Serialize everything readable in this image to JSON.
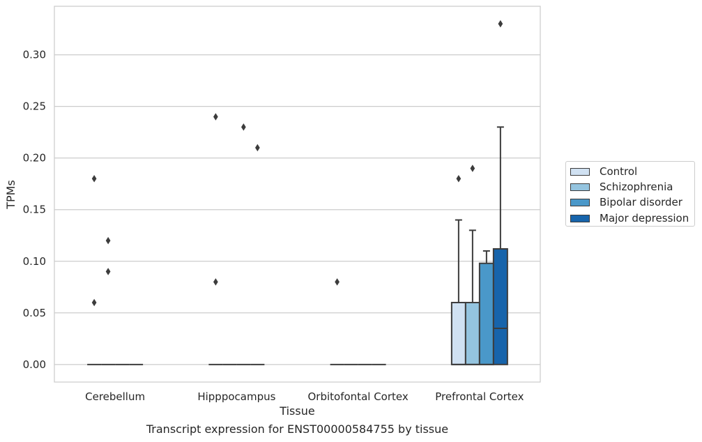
{
  "chart_data": {
    "type": "box",
    "caption": "Transcript expression for ENST00000584755 by tissue",
    "xlabel": "Tissue",
    "ylabel": "TPMs",
    "ylim": [
      -0.017,
      0.347
    ],
    "yticks": [
      0.0,
      0.05,
      0.1,
      0.15,
      0.2,
      0.25,
      0.3
    ],
    "ytick_labels": [
      "0.00",
      "0.05",
      "0.10",
      "0.15",
      "0.20",
      "0.25",
      "0.30"
    ],
    "categories": [
      "Cerebellum",
      "Hipppocampus",
      "Orbitofontal Cortex",
      "Prefrontal Cortex"
    ],
    "grid": "horizontal",
    "legend_position": "right",
    "series": [
      {
        "name": "Control",
        "color": "#d0e1f2",
        "boxes": [
          {
            "q1": 0,
            "median": 0,
            "q3": 0,
            "whisker_low": 0,
            "whisker_high": 0,
            "outliers": [
              0.06,
              0.18
            ]
          },
          {
            "q1": 0,
            "median": 0,
            "q3": 0,
            "whisker_low": 0,
            "whisker_high": 0,
            "outliers": [
              0.08,
              0.24
            ]
          },
          {
            "q1": 0,
            "median": 0,
            "q3": 0,
            "whisker_low": 0,
            "whisker_high": 0,
            "outliers": [
              0.08
            ]
          },
          {
            "q1": 0,
            "median": 0,
            "q3": 0.06,
            "whisker_low": 0,
            "whisker_high": 0.14,
            "outliers": [
              0.18
            ]
          }
        ]
      },
      {
        "name": "Schizophrenia",
        "color": "#94c4df",
        "boxes": [
          {
            "q1": 0,
            "median": 0,
            "q3": 0,
            "whisker_low": 0,
            "whisker_high": 0,
            "outliers": [
              0.09,
              0.12
            ]
          },
          {
            "q1": 0,
            "median": 0,
            "q3": 0,
            "whisker_low": 0,
            "whisker_high": 0,
            "outliers": []
          },
          {
            "q1": 0,
            "median": 0,
            "q3": 0,
            "whisker_low": 0,
            "whisker_high": 0,
            "outliers": []
          },
          {
            "q1": 0,
            "median": 0,
            "q3": 0.06,
            "whisker_low": 0,
            "whisker_high": 0.13,
            "outliers": [
              0.19
            ]
          }
        ]
      },
      {
        "name": "Bipolar disorder",
        "color": "#4a98c9",
        "boxes": [
          {
            "q1": 0,
            "median": 0,
            "q3": 0,
            "whisker_low": 0,
            "whisker_high": 0,
            "outliers": []
          },
          {
            "q1": 0,
            "median": 0,
            "q3": 0,
            "whisker_low": 0,
            "whisker_high": 0,
            "outliers": [
              0.23
            ]
          },
          {
            "q1": 0,
            "median": 0,
            "q3": 0,
            "whisker_low": 0,
            "whisker_high": 0,
            "outliers": []
          },
          {
            "q1": 0,
            "median": 0,
            "q3": 0.098,
            "whisker_low": 0,
            "whisker_high": 0.11,
            "outliers": []
          }
        ]
      },
      {
        "name": "Major depression",
        "color": "#1764ab",
        "boxes": [
          {
            "q1": 0,
            "median": 0,
            "q3": 0,
            "whisker_low": 0,
            "whisker_high": 0,
            "outliers": []
          },
          {
            "q1": 0,
            "median": 0,
            "q3": 0,
            "whisker_low": 0,
            "whisker_high": 0,
            "outliers": [
              0.21
            ]
          },
          {
            "q1": 0,
            "median": 0,
            "q3": 0,
            "whisker_low": 0,
            "whisker_high": 0,
            "outliers": []
          },
          {
            "q1": 0,
            "median": 0.035,
            "q3": 0.112,
            "whisker_low": 0,
            "whisker_high": 0.23,
            "outliers": [
              0.33
            ]
          }
        ]
      }
    ]
  }
}
